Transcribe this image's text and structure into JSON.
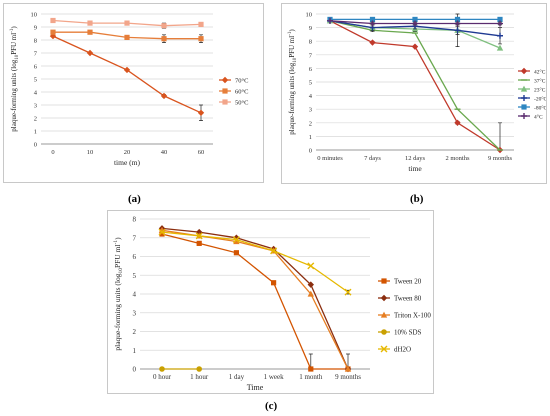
{
  "captions": {
    "a": "(a)",
    "b": "(b)",
    "c": "(c)"
  },
  "chart_data": [
    {
      "type": "line",
      "xlabel": "time (m)",
      "ylabel": "plaque-forming units (log10PFU ml-1)",
      "ylabel_parts": {
        "pre": "plaque-forming units (log",
        "sub": "10",
        "mid": "PFU ml",
        "sup": "-1",
        "post": ")"
      },
      "categories": [
        "0",
        "10",
        "20",
        "40",
        "60"
      ],
      "ylim": [
        0,
        10
      ],
      "yticks": [
        "0",
        "1",
        "2",
        "3",
        "4",
        "5",
        "6",
        "7",
        "8",
        "9",
        "10"
      ],
      "grid": true,
      "legend": "right",
      "series": [
        {
          "name": "70°C",
          "color": "#d9541e",
          "marker": "diamond",
          "values": [
            8.3,
            7.0,
            5.7,
            3.7,
            2.4
          ],
          "errors": [
            0,
            0,
            0,
            0.1,
            0.6
          ]
        },
        {
          "name": "60°C",
          "color": "#e67e3a",
          "marker": "square",
          "values": [
            8.6,
            8.6,
            8.2,
            8.1,
            8.1
          ],
          "errors": [
            0.1,
            0.1,
            0.1,
            0.3,
            0.3
          ]
        },
        {
          "name": "50°C",
          "color": "#f2a58a",
          "marker": "square",
          "values": [
            9.5,
            9.3,
            9.3,
            9.1,
            9.2
          ],
          "errors": [
            0.05,
            0.05,
            0.05,
            0.2,
            0.1
          ]
        }
      ]
    },
    {
      "type": "line",
      "xlabel": "time",
      "ylabel": "plaque-forming units (log10PFU ml-1)",
      "ylabel_parts": {
        "pre": "plaque-forming units (log",
        "sub": "10",
        "mid": "PFU ml",
        "sup": "-1",
        "post": ")"
      },
      "categories": [
        "0 minutes",
        "7 days",
        "12 days",
        "2 months",
        "9 months"
      ],
      "ylim": [
        0,
        10
      ],
      "yticks": [
        "0",
        "1",
        "2",
        "3",
        "4",
        "5",
        "6",
        "7",
        "8",
        "9",
        "10"
      ],
      "grid": true,
      "legend": "right",
      "series": [
        {
          "name": "42°C",
          "color": "#c0392b",
          "marker": "diamond",
          "values": [
            9.5,
            7.9,
            7.6,
            2.0,
            0.0
          ],
          "errors": [
            0,
            0,
            0,
            0.1,
            2.0
          ]
        },
        {
          "name": "37°C",
          "color": "#6aa84f",
          "marker": "line",
          "values": [
            9.5,
            8.8,
            8.6,
            3.0,
            0.0
          ],
          "errors": [
            0,
            0,
            0,
            0,
            0
          ]
        },
        {
          "name": "23°C",
          "color": "#7fbf7f",
          "marker": "triangle",
          "values": [
            9.5,
            9.0,
            8.9,
            8.8,
            7.5
          ],
          "errors": [
            0,
            0.3,
            0.2,
            0.3,
            0
          ]
        },
        {
          "name": "-20°C",
          "color": "#1f3a93",
          "marker": "cross",
          "values": [
            9.5,
            9.0,
            9.1,
            8.8,
            8.4
          ],
          "errors": [
            0,
            0.2,
            0.2,
            1.2,
            0.6
          ]
        },
        {
          "name": "-80°C",
          "color": "#2e86c1",
          "marker": "square",
          "values": [
            9.6,
            9.6,
            9.6,
            9.6,
            9.6
          ],
          "errors": [
            0,
            0,
            0,
            0,
            0
          ]
        },
        {
          "name": "4°C",
          "color": "#5b2c6f",
          "marker": "cross",
          "values": [
            9.5,
            9.3,
            9.3,
            9.3,
            9.3
          ],
          "errors": [
            0,
            0.1,
            0.1,
            0.1,
            0.1
          ]
        }
      ]
    },
    {
      "type": "line",
      "xlabel": "Time",
      "ylabel": "plaque-forming units (log10PFU ml-1)",
      "ylabel_parts": {
        "pre": "plaque-forming units (log",
        "sub": "10",
        "mid": "PFU ml",
        "sup": "-1",
        "post": ")"
      },
      "categories": [
        "0 hour",
        "1 hour",
        "1 day",
        "1 week",
        "1 month",
        "9 months"
      ],
      "ylim": [
        0,
        8
      ],
      "yticks": [
        "0",
        "1",
        "2",
        "3",
        "4",
        "5",
        "6",
        "7",
        "8"
      ],
      "grid": true,
      "legend": "right",
      "series": [
        {
          "name": "Tween 20",
          "color": "#d35400",
          "marker": "square",
          "values": [
            7.2,
            6.7,
            6.2,
            4.6,
            0.0,
            0.0
          ],
          "errors": [
            0,
            0,
            0,
            0,
            0.8,
            0
          ]
        },
        {
          "name": "Tween 80",
          "color": "#8b2e0f",
          "marker": "diamond",
          "values": [
            7.5,
            7.3,
            7.0,
            6.4,
            4.5,
            0.0
          ],
          "errors": [
            0,
            0,
            0,
            0,
            0,
            0.8
          ]
        },
        {
          "name": "Triton X-100",
          "color": "#e67e22",
          "marker": "triangle",
          "values": [
            7.4,
            7.1,
            6.8,
            6.3,
            4.0,
            0.0
          ],
          "errors": [
            0,
            0,
            0,
            0,
            0,
            0
          ]
        },
        {
          "name": "10% SDS",
          "color": "#c9a000",
          "marker": "circle",
          "values": [
            0.0,
            0.0,
            null,
            null,
            null,
            null
          ],
          "errors": [
            0,
            0,
            0,
            0,
            0,
            0
          ]
        },
        {
          "name": "dH2O",
          "color": "#e6b800",
          "marker": "x",
          "values": [
            7.3,
            7.1,
            6.9,
            6.3,
            5.5,
            4.1
          ],
          "errors": [
            0,
            0,
            0,
            0,
            0,
            0.1
          ]
        }
      ]
    }
  ]
}
